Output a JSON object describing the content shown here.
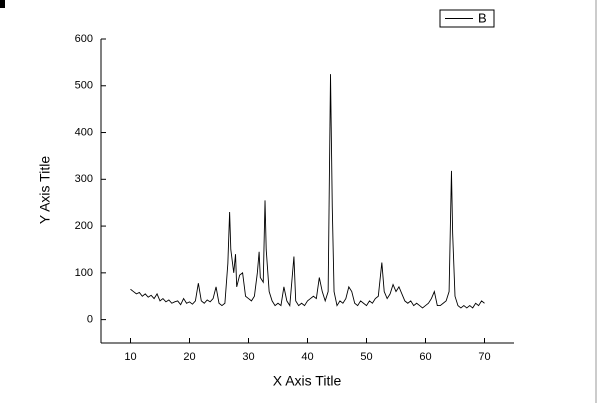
{
  "chart_data": {
    "type": "line",
    "x_label": "X Axis Title",
    "y_label": "Y Axis Title",
    "xlim": [
      5,
      75
    ],
    "ylim": [
      -50,
      600
    ],
    "xticks": [
      10,
      20,
      30,
      40,
      50,
      60,
      70
    ],
    "yticks": [
      0,
      100,
      200,
      300,
      400,
      500,
      600
    ],
    "legend": "upper right",
    "x": [
      10,
      10.5,
      11,
      11.5,
      12,
      12.5,
      13,
      13.5,
      14,
      14.5,
      15,
      15.5,
      16,
      16.5,
      17,
      17.5,
      18,
      18.5,
      19,
      19.5,
      20,
      20.5,
      21,
      21.5,
      22,
      22.5,
      23,
      23.5,
      24,
      24.5,
      25,
      25.5,
      26,
      26.5,
      26.8,
      27,
      27.5,
      27.8,
      28,
      28.5,
      29,
      29.5,
      30,
      30.5,
      31,
      31.5,
      31.8,
      32,
      32.5,
      32.8,
      33,
      33.5,
      34,
      34.5,
      35,
      35.5,
      36,
      36.5,
      37,
      37.7,
      38,
      38.5,
      39,
      39.5,
      40,
      40.5,
      41,
      41.5,
      42,
      42.5,
      43,
      43.5,
      43.9,
      44.2,
      44.5,
      45,
      45.5,
      46,
      46.5,
      47,
      47.5,
      48,
      48.5,
      49,
      49.5,
      50,
      50.5,
      51,
      51.5,
      52,
      52.6,
      53,
      53.5,
      54,
      54.5,
      55,
      55.5,
      56,
      56.5,
      57,
      57.5,
      58,
      58.5,
      59,
      59.5,
      60,
      60.5,
      61,
      61.5,
      62,
      62.5,
      63,
      63.5,
      64,
      64.4,
      64.6,
      65,
      65.5,
      66,
      66.5,
      67,
      67.5,
      68,
      68.5,
      69,
      69.5,
      70
    ],
    "series": [
      {
        "name": "B",
        "color": "#000000",
        "values": [
          65,
          60,
          55,
          58,
          50,
          55,
          48,
          52,
          45,
          55,
          40,
          45,
          38,
          42,
          35,
          38,
          40,
          32,
          45,
          35,
          38,
          33,
          40,
          78,
          40,
          35,
          42,
          38,
          45,
          70,
          35,
          30,
          35,
          120,
          230,
          150,
          100,
          140,
          70,
          95,
          100,
          50,
          45,
          40,
          50,
          100,
          145,
          90,
          80,
          255,
          150,
          60,
          40,
          30,
          35,
          30,
          70,
          40,
          30,
          135,
          40,
          30,
          35,
          30,
          40,
          45,
          50,
          45,
          90,
          60,
          40,
          60,
          525,
          240,
          60,
          30,
          40,
          35,
          45,
          70,
          60,
          35,
          30,
          40,
          35,
          30,
          40,
          35,
          45,
          50,
          122,
          60,
          45,
          55,
          75,
          60,
          70,
          55,
          40,
          35,
          40,
          30,
          35,
          30,
          25,
          30,
          35,
          45,
          60,
          30,
          30,
          35,
          40,
          60,
          318,
          185,
          50,
          30,
          25,
          30,
          25,
          30,
          25,
          35,
          30,
          40,
          35
        ]
      }
    ]
  }
}
